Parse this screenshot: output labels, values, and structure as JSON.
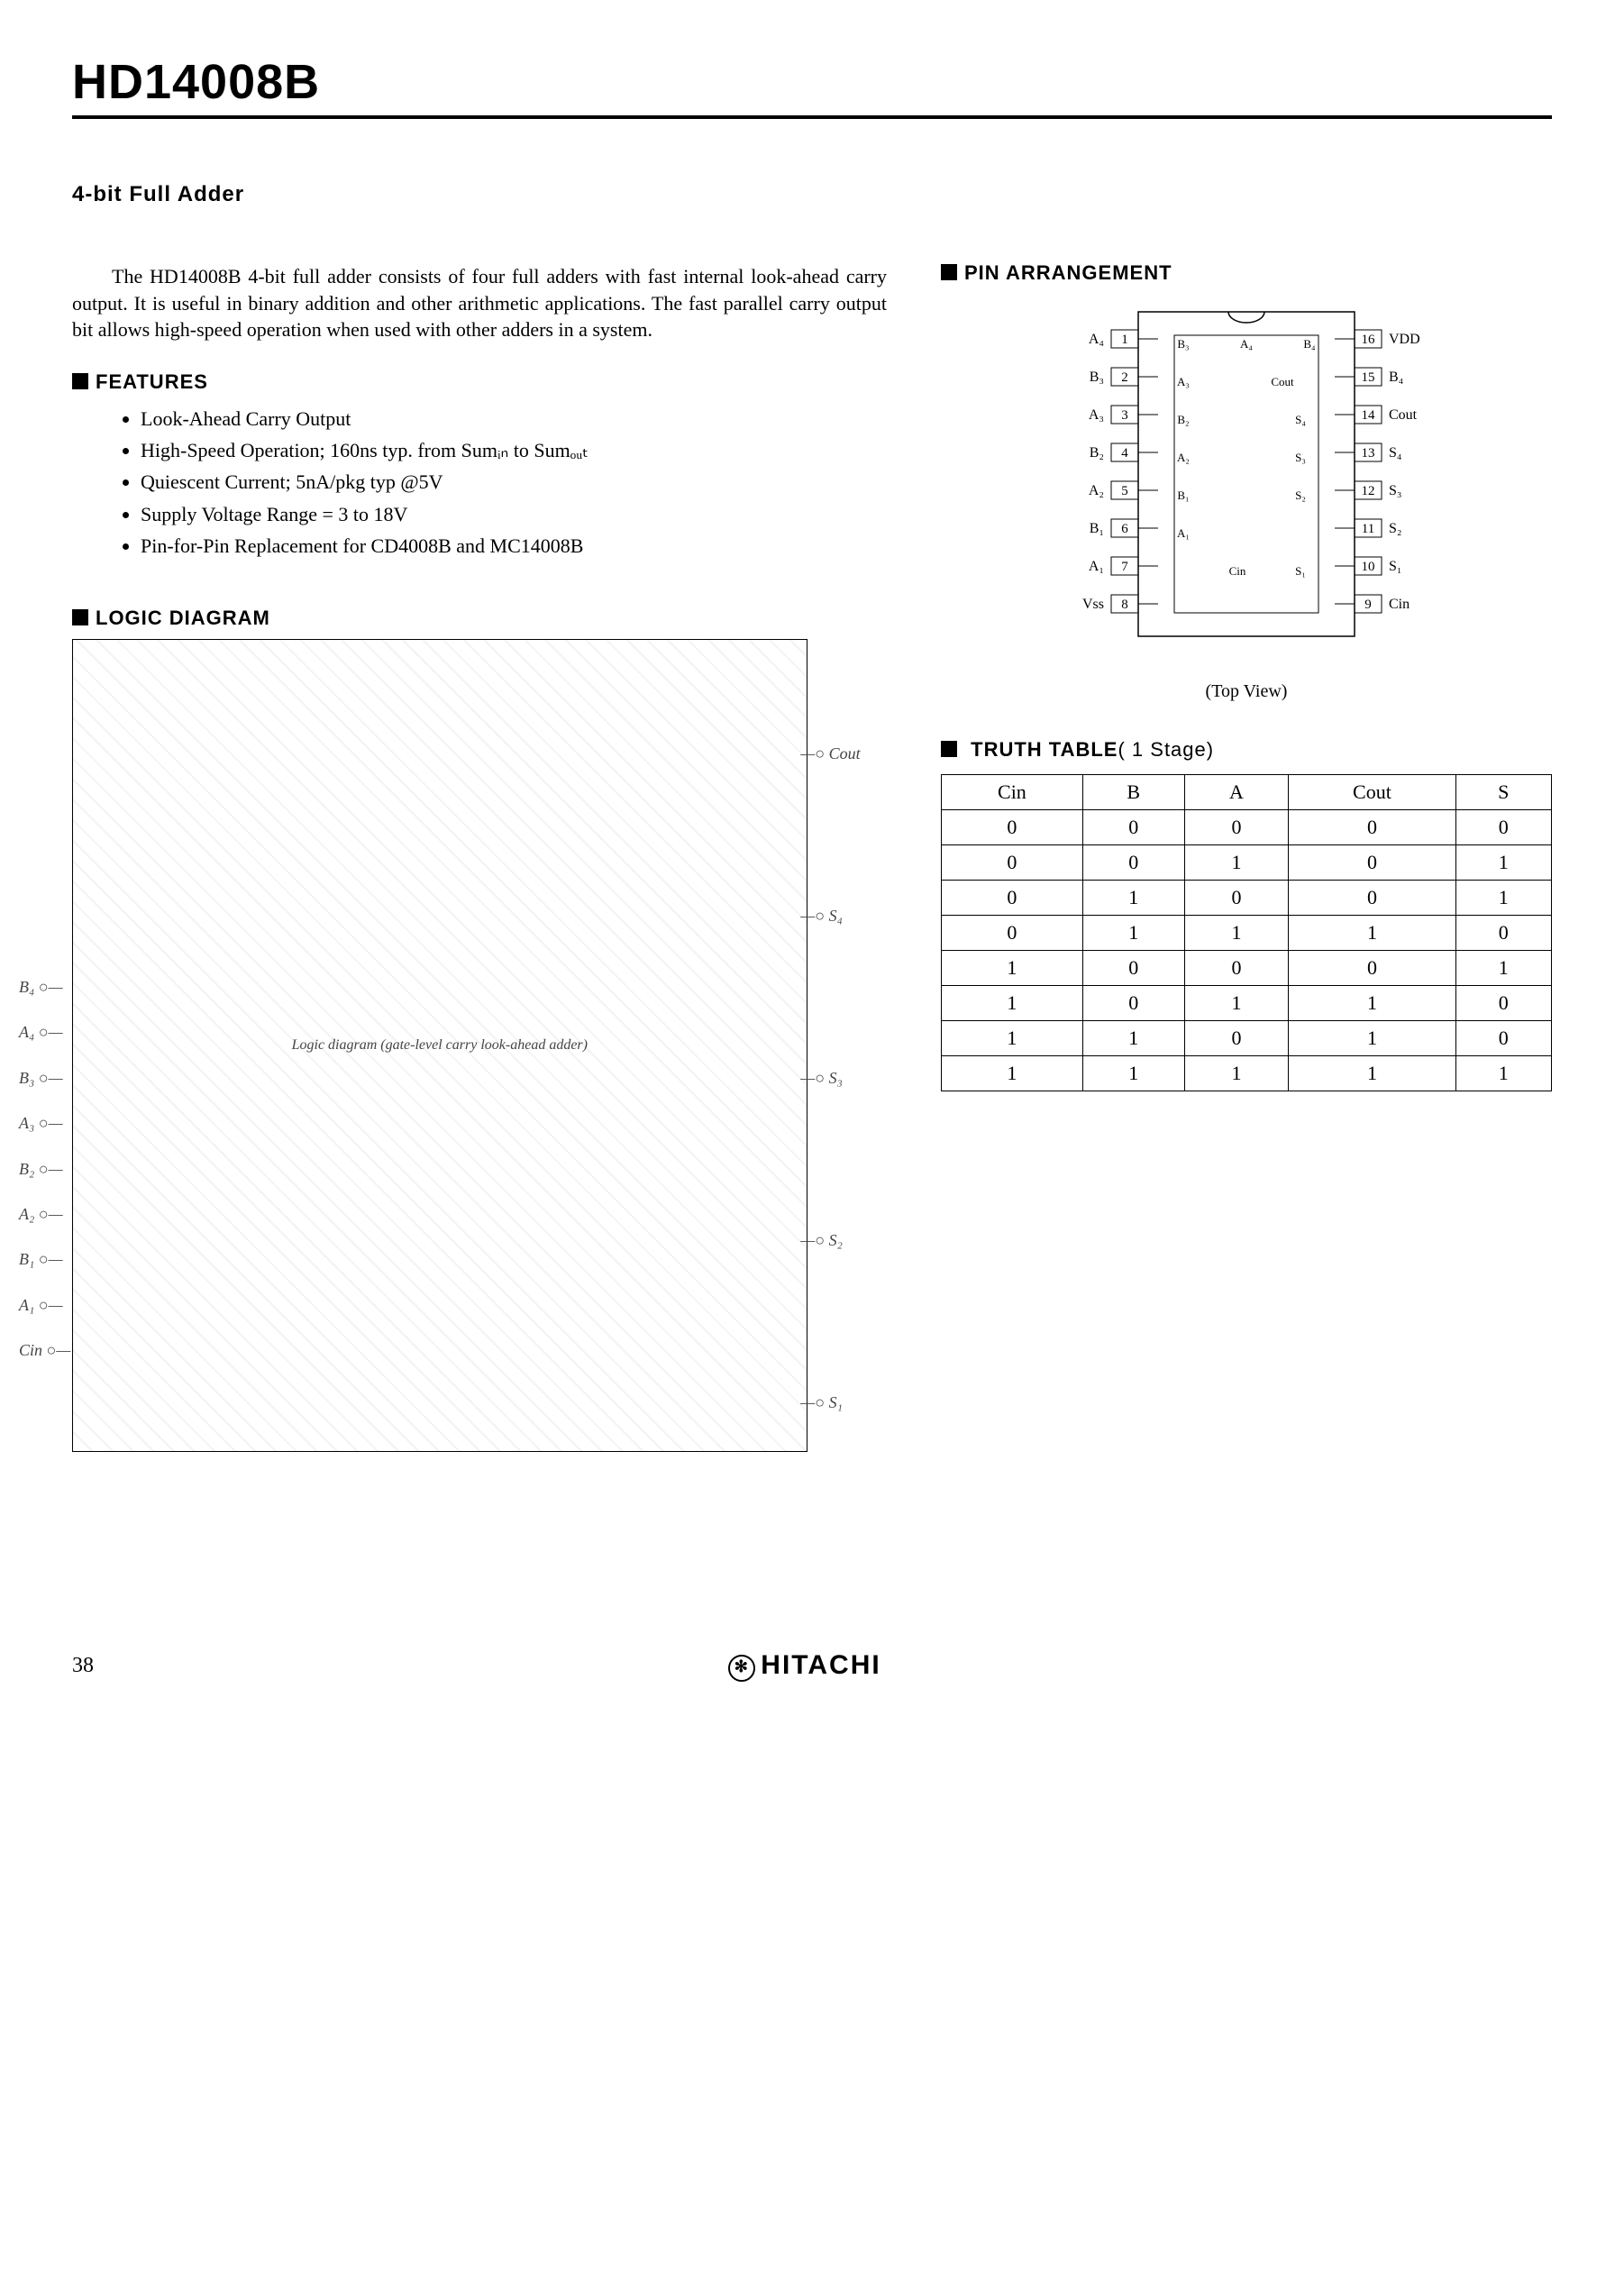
{
  "title": "HD14008B",
  "subtitle": "4-bit Full Adder",
  "intro": "The HD14008B 4-bit full adder consists of four full adders with fast internal look-ahead carry output. It is useful in binary addition and other arithmetic applications. The fast parallel carry output bit allows high-speed operation when used with other adders in a system.",
  "features_head": "FEATURES",
  "features": [
    "Look-Ahead Carry Output",
    "High-Speed Operation; 160ns typ. from Sumᵢₙ to Sumₒᵤₜ",
    "Quiescent Current; 5nA/pkg typ @5V",
    "Supply Voltage Range = 3 to 18V",
    "Pin-for-Pin Replacement for CD4008B and MC14008B"
  ],
  "pin_head": "PIN ARRANGEMENT",
  "pin_caption": "(Top View)",
  "pins_left": [
    {
      "n": "1",
      "lbl": "A₄"
    },
    {
      "n": "2",
      "lbl": "B₃"
    },
    {
      "n": "3",
      "lbl": "A₃"
    },
    {
      "n": "4",
      "lbl": "B₂"
    },
    {
      "n": "5",
      "lbl": "A₂"
    },
    {
      "n": "6",
      "lbl": "B₁"
    },
    {
      "n": "7",
      "lbl": "A₁"
    },
    {
      "n": "8",
      "lbl": "Vss"
    }
  ],
  "pins_right": [
    {
      "n": "16",
      "lbl": "VDD"
    },
    {
      "n": "15",
      "lbl": "B₄"
    },
    {
      "n": "14",
      "lbl": "Cout"
    },
    {
      "n": "13",
      "lbl": "S₄"
    },
    {
      "n": "12",
      "lbl": "S₃"
    },
    {
      "n": "11",
      "lbl": "S₂"
    },
    {
      "n": "10",
      "lbl": "S₁"
    },
    {
      "n": "9",
      "lbl": "Cin"
    }
  ],
  "pin_internal": [
    "B₃",
    "A₄",
    "B₄",
    "A₃",
    "Cout",
    "B₂",
    "S₄",
    "A₂",
    "S₃",
    "B₁",
    "S₂",
    "A₁",
    "Cin",
    "S₁"
  ],
  "truth_head": "TRUTH TABLE",
  "truth_stage": "( 1 Stage)",
  "truth_table": {
    "columns": [
      "Cin",
      "B",
      "A",
      "Cout",
      "S"
    ],
    "rows": [
      [
        "0",
        "0",
        "0",
        "0",
        "0"
      ],
      [
        "0",
        "0",
        "1",
        "0",
        "1"
      ],
      [
        "0",
        "1",
        "0",
        "0",
        "1"
      ],
      [
        "0",
        "1",
        "1",
        "1",
        "0"
      ],
      [
        "1",
        "0",
        "0",
        "0",
        "1"
      ],
      [
        "1",
        "0",
        "1",
        "1",
        "0"
      ],
      [
        "1",
        "1",
        "0",
        "1",
        "0"
      ],
      [
        "1",
        "1",
        "1",
        "1",
        "1"
      ]
    ]
  },
  "logic_head": "LOGIC DIAGRAM",
  "logic_inputs_left": [
    "B₄",
    "A₄",
    "B₃",
    "A₃",
    "B₂",
    "A₂",
    "B₁",
    "A₁",
    "Cin"
  ],
  "logic_outputs_right": [
    "Cout",
    "S₄",
    "S₃",
    "S₂",
    "S₁"
  ],
  "logic_note": "Logic diagram (gate-level carry look-ahead adder)",
  "page_number": "38",
  "brand": "HITACHI"
}
